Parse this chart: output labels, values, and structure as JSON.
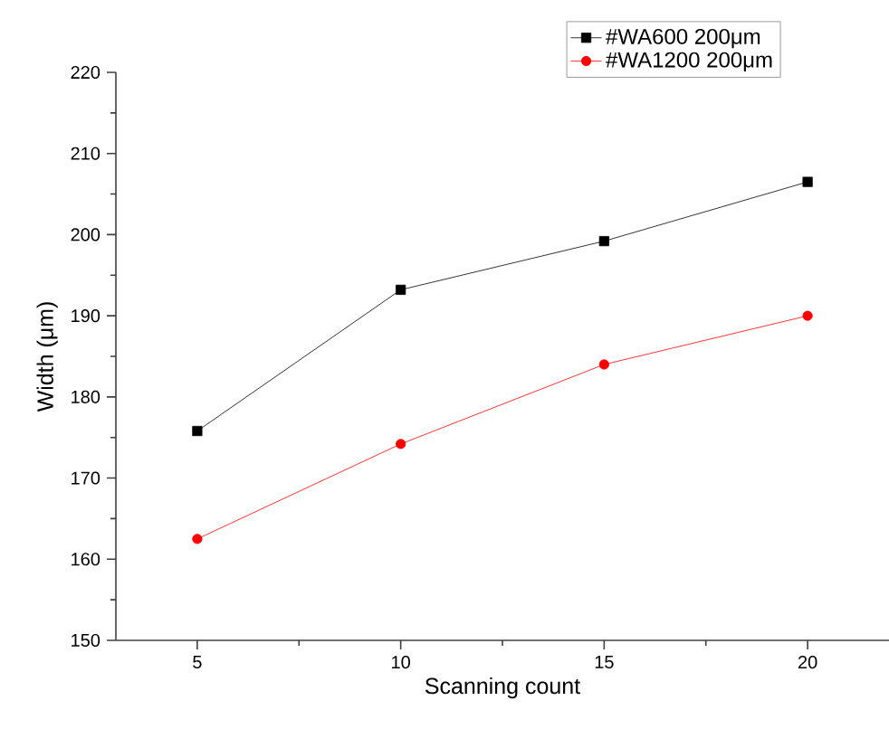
{
  "chart_data": {
    "type": "line",
    "xlabel": "Scanning count",
    "ylabel": "Width (μm)",
    "x": [
      5,
      10,
      15,
      20
    ],
    "series": [
      {
        "name": "#WA600   200μm",
        "color": "#000000",
        "marker": "square",
        "values": [
          175.8,
          193.2,
          199.2,
          206.5
        ]
      },
      {
        "name": "#WA1200 200μm",
        "color": "#ff0000",
        "marker": "circle",
        "values": [
          162.5,
          174.2,
          184.0,
          190.0
        ]
      }
    ],
    "xlim": [
      3,
      22
    ],
    "xticks": [
      5,
      10,
      15,
      20
    ],
    "ylim": [
      150,
      220
    ],
    "yticks": [
      150,
      160,
      170,
      180,
      190,
      200,
      210,
      220
    ],
    "grid": false,
    "legend": "top right",
    "line_style": "solid"
  }
}
